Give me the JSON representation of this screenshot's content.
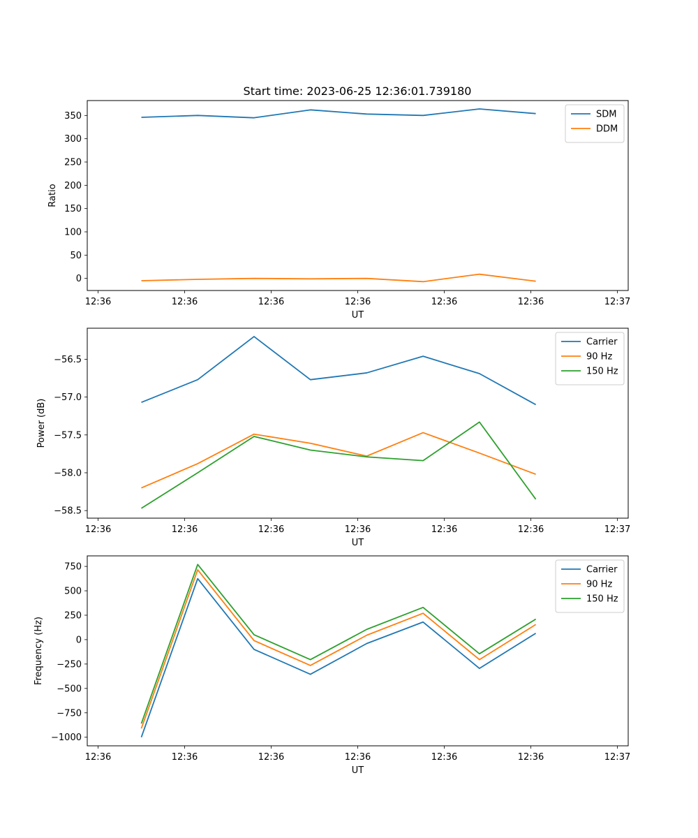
{
  "chart_data": [
    {
      "type": "line",
      "title": "Start time: 2023-06-25 12:36:01.739180",
      "xlabel": "UT",
      "ylabel": "Ratio",
      "xlim": [
        0,
        12
      ],
      "ylim": [
        -26,
        382
      ],
      "x_ticks": [
        {
          "x": 0.24,
          "label": "12:36"
        },
        {
          "x": 2.16,
          "label": "12:36"
        },
        {
          "x": 4.08,
          "label": "12:36"
        },
        {
          "x": 6.0,
          "label": "12:36"
        },
        {
          "x": 7.92,
          "label": "12:36"
        },
        {
          "x": 9.84,
          "label": "12:36"
        },
        {
          "x": 11.76,
          "label": "12:37"
        }
      ],
      "y_ticks": [
        0,
        50,
        100,
        150,
        200,
        250,
        300,
        350
      ],
      "legend_position": "upper right",
      "x": [
        1.2,
        2.45,
        3.7,
        4.95,
        6.2,
        7.45,
        8.7,
        9.95
      ],
      "series": [
        {
          "name": "SDM",
          "color": "#1f77b4",
          "values": [
            346,
            350,
            345,
            362,
            353,
            350,
            364,
            354
          ]
        },
        {
          "name": "DDM",
          "color": "#ff7f0e",
          "values": [
            -5,
            -2,
            0,
            -1,
            0,
            -7,
            9,
            -6
          ]
        }
      ]
    },
    {
      "type": "line",
      "title": "",
      "xlabel": "UT",
      "ylabel": "Power (dB)",
      "xlim": [
        0,
        12
      ],
      "ylim": [
        -58.6,
        -56.09
      ],
      "x_ticks": [
        {
          "x": 0.24,
          "label": "12:36"
        },
        {
          "x": 2.16,
          "label": "12:36"
        },
        {
          "x": 4.08,
          "label": "12:36"
        },
        {
          "x": 6.0,
          "label": "12:36"
        },
        {
          "x": 7.92,
          "label": "12:36"
        },
        {
          "x": 9.84,
          "label": "12:36"
        },
        {
          "x": 11.76,
          "label": "12:37"
        }
      ],
      "y_ticks": [
        {
          "value": -58.5,
          "label": "−58.5"
        },
        {
          "value": -58.0,
          "label": "−58.0"
        },
        {
          "value": -57.5,
          "label": "−57.5"
        },
        {
          "value": -57.0,
          "label": "−57.0"
        },
        {
          "value": -56.5,
          "label": "−56.5"
        }
      ],
      "legend_position": "upper right",
      "x": [
        1.2,
        2.45,
        3.7,
        4.95,
        6.2,
        7.45,
        8.7,
        9.95
      ],
      "series": [
        {
          "name": "Carrier",
          "color": "#1f77b4",
          "values": [
            -57.07,
            -56.77,
            -56.2,
            -56.77,
            -56.68,
            -56.46,
            -56.69,
            -57.1
          ]
        },
        {
          "name": "90 Hz",
          "color": "#ff7f0e",
          "values": [
            -58.2,
            -57.88,
            -57.49,
            -57.61,
            -57.78,
            -57.47,
            -57.74,
            -58.02
          ]
        },
        {
          "name": "150 Hz",
          "color": "#2ca02c",
          "values": [
            -58.47,
            -58.0,
            -57.52,
            -57.7,
            -57.79,
            -57.84,
            -57.33,
            -58.35
          ]
        }
      ]
    },
    {
      "type": "line",
      "title": "",
      "xlabel": "UT",
      "ylabel": "Frequency (Hz)",
      "xlim": [
        0,
        12
      ],
      "ylim": [
        -1088,
        858
      ],
      "x_ticks": [
        {
          "x": 0.24,
          "label": "12:36"
        },
        {
          "x": 2.16,
          "label": "12:36"
        },
        {
          "x": 4.08,
          "label": "12:36"
        },
        {
          "x": 6.0,
          "label": "12:36"
        },
        {
          "x": 7.92,
          "label": "12:36"
        },
        {
          "x": 9.84,
          "label": "12:36"
        },
        {
          "x": 11.76,
          "label": "12:37"
        }
      ],
      "y_ticks": [
        {
          "value": -1000,
          "label": "−1000"
        },
        {
          "value": -750,
          "label": "−750"
        },
        {
          "value": -500,
          "label": "−500"
        },
        {
          "value": -250,
          "label": "−250"
        },
        {
          "value": 0,
          "label": "0"
        },
        {
          "value": 250,
          "label": "250"
        },
        {
          "value": 500,
          "label": "500"
        },
        {
          "value": 750,
          "label": "750"
        }
      ],
      "legend_position": "upper right",
      "x": [
        1.2,
        2.45,
        3.7,
        4.95,
        6.2,
        7.45,
        8.7,
        9.95
      ],
      "series": [
        {
          "name": "Carrier",
          "color": "#1f77b4",
          "values": [
            -1000,
            625,
            -100,
            -355,
            -40,
            180,
            -295,
            65
          ]
        },
        {
          "name": "90 Hz",
          "color": "#ff7f0e",
          "values": [
            -910,
            715,
            -10,
            -265,
            45,
            270,
            -205,
            155
          ]
        },
        {
          "name": "150 Hz",
          "color": "#2ca02c",
          "values": [
            -860,
            770,
            50,
            -205,
            105,
            330,
            -145,
            210
          ]
        }
      ]
    }
  ]
}
